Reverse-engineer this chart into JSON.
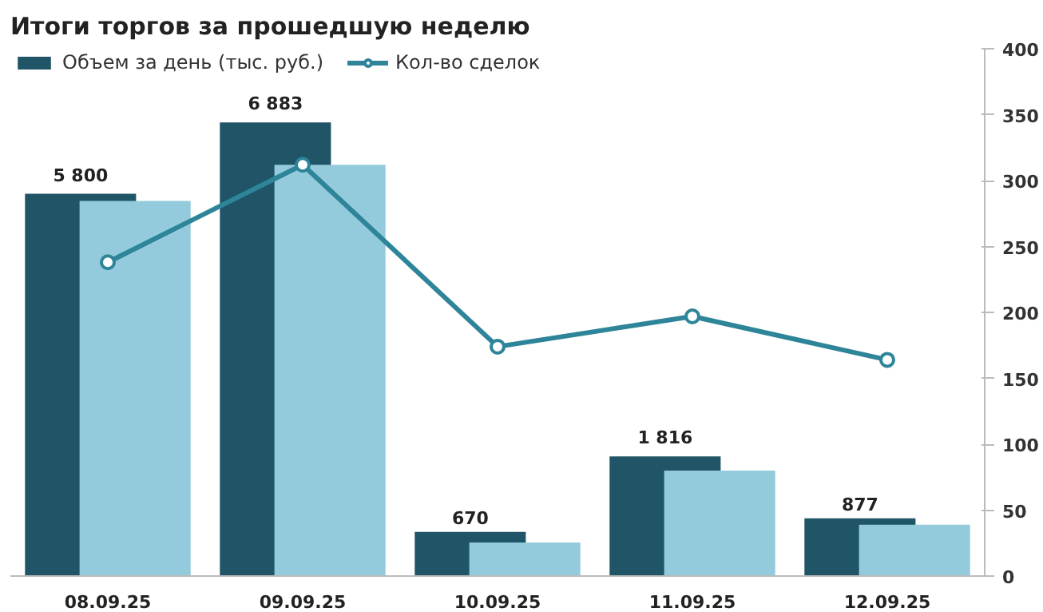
{
  "chart_data": {
    "type": "bar",
    "title": "Итоги торгов за прошедшую неделю",
    "categories": [
      "08.09.25",
      "09.09.25",
      "10.09.25",
      "11.09.25",
      "12.09.25"
    ],
    "series": [
      {
        "name": "Объем за день (тыс. руб.)",
        "color": "#1f5566",
        "values": [
          5800,
          6883,
          670,
          1816,
          877
        ],
        "value_labels": [
          "5 800",
          "6 883",
          "670",
          "1 816",
          "877"
        ]
      },
      {
        "color": "#93cbdc",
        "values": [
          5690,
          6240,
          510,
          1600,
          780
        ]
      },
      {
        "name": "Кол-во сделок",
        "type": "line",
        "axis": "y2",
        "color": "#2e8499",
        "marker": "circle",
        "values": [
          238,
          312,
          174,
          197,
          164
        ]
      }
    ],
    "ylim": [
      0,
      8000
    ],
    "y2lim": [
      0,
      400
    ],
    "y2ticks": [
      0,
      50,
      100,
      150,
      200,
      250,
      300,
      350,
      400
    ],
    "grid": false,
    "legend": "top left"
  }
}
